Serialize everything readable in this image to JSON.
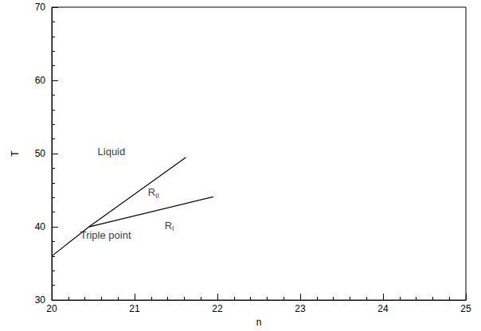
{
  "chart_data": {
    "type": "line",
    "xlabel": "n",
    "ylabel": "T",
    "xlim": [
      20,
      25
    ],
    "ylim": [
      30,
      70
    ],
    "xticks": [
      20,
      21,
      22,
      23,
      24,
      25
    ],
    "yticks": [
      30,
      40,
      50,
      60,
      70
    ],
    "grid": false,
    "color": "#000000",
    "series": [
      {
        "x": [
          20,
          20.45,
          21.62
        ],
        "values": [
          36,
          40,
          49.5
        ],
        "color": "#000000"
      },
      {
        "x": [
          20.45,
          21.95
        ],
        "values": [
          40,
          44.1
        ],
        "color": "#000000"
      }
    ],
    "annotations": [
      {
        "text": "Liquid",
        "x": 20.72,
        "y": 50.3
      },
      {
        "text": "R",
        "subscript": "II",
        "x": 21.23,
        "y": 44.7
      },
      {
        "text": "R",
        "subscript": "I",
        "x": 21.42,
        "y": 40.2
      },
      {
        "text": "Triple point",
        "x": 20.65,
        "y": 38.9
      }
    ]
  }
}
